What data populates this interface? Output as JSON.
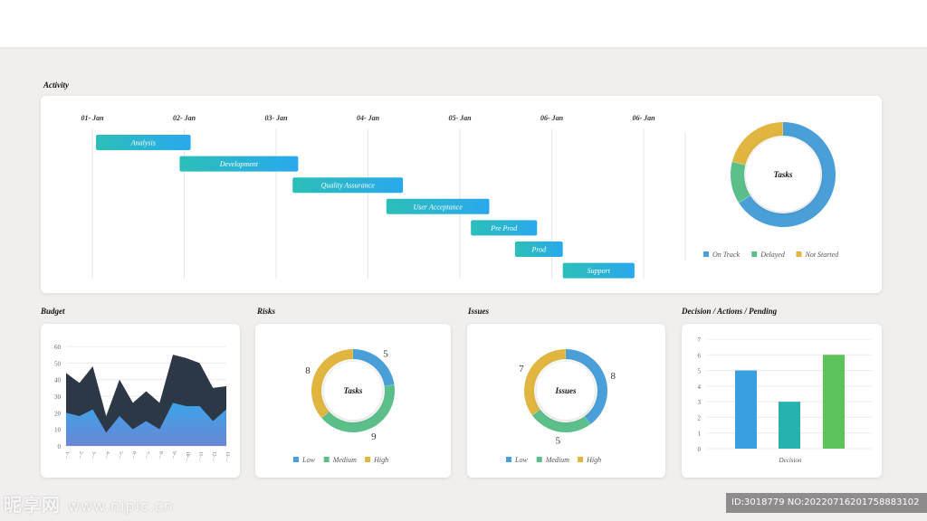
{
  "sections": {
    "activity": "Activity",
    "budget": "Budget",
    "risks": "Risks",
    "issues": "Issues",
    "decision": "Decision / Actions / Pending"
  },
  "gantt": {
    "dates": [
      "01- Jan",
      "02- Jan",
      "03- Jan",
      "04- Jan",
      "05- Jan",
      "06- Jan",
      "06- Jan"
    ],
    "tasks": [
      {
        "label": "Analysis",
        "start": 0.04,
        "end": 1.07
      },
      {
        "label": "Development",
        "start": 0.95,
        "end": 2.24
      },
      {
        "label": "Quality Assurance",
        "start": 2.18,
        "end": 3.38
      },
      {
        "label": "User Acceptance",
        "start": 3.2,
        "end": 4.32
      },
      {
        "label": "Pre Prod",
        "start": 4.12,
        "end": 4.84
      },
      {
        "label": "Prod",
        "start": 4.6,
        "end": 5.12
      },
      {
        "label": "Support",
        "start": 5.12,
        "end": 5.9
      }
    ],
    "colors": {
      "start": "#2bbfb8",
      "end": "#2aa8ee"
    }
  },
  "tasks_donut": {
    "center_label": "Tasks",
    "legend": [
      {
        "label": "On Track",
        "color": "#4a9fd8",
        "value": 66
      },
      {
        "label": "Delayed",
        "color": "#5cbf8a",
        "value": 13
      },
      {
        "label": "Not Started",
        "color": "#e0b640",
        "value": 21
      }
    ]
  },
  "budget": {
    "y_ticks": [
      "60",
      "50",
      "40",
      "30",
      "20",
      "10",
      "0"
    ],
    "x_labels": [
      "1-...",
      "2-...",
      "3-...",
      "4-...",
      "5-...",
      "6-...",
      "7-...",
      "8-...",
      "9-...",
      "10-...",
      "11-...",
      "12-...",
      "13-..."
    ],
    "series_dark": [
      44,
      38,
      48,
      18,
      40,
      26,
      33,
      26,
      55,
      53,
      50,
      35,
      36
    ],
    "series_blue": [
      20,
      18,
      22,
      8,
      18,
      10,
      15,
      10,
      26,
      24,
      24,
      15,
      22
    ],
    "colors": {
      "dark": "#2d3846",
      "blue_top": "#3aa4e8",
      "blue_bottom": "#6b86d6"
    }
  },
  "risks": {
    "center_label": "Tasks",
    "segments": [
      {
        "label": "Low",
        "value": 5,
        "color": "#4a9fd8"
      },
      {
        "label": "Medium",
        "value": 9,
        "color": "#5cbf8a"
      },
      {
        "label": "High",
        "value": 8,
        "color": "#e0b640"
      }
    ]
  },
  "issues": {
    "center_label": "Issues",
    "segments": [
      {
        "label": "Low",
        "value": 8,
        "color": "#4a9fd8"
      },
      {
        "label": "Medium",
        "value": 5,
        "color": "#5cbf8a"
      },
      {
        "label": "High",
        "value": 7,
        "color": "#e0b640"
      }
    ]
  },
  "decision": {
    "y_ticks": [
      "7",
      "6",
      "5",
      "4",
      "3",
      "2",
      "1",
      "0"
    ],
    "values": [
      5,
      3,
      6
    ],
    "colors": [
      "#3a9fe0",
      "#26b3b0",
      "#5fc35b"
    ],
    "x_label": "Decision"
  },
  "watermark": {
    "left_main": "昵享网",
    "left_small": "www.nipic.cn",
    "right": "ID:3018779 NO:20220716201758883102"
  }
}
